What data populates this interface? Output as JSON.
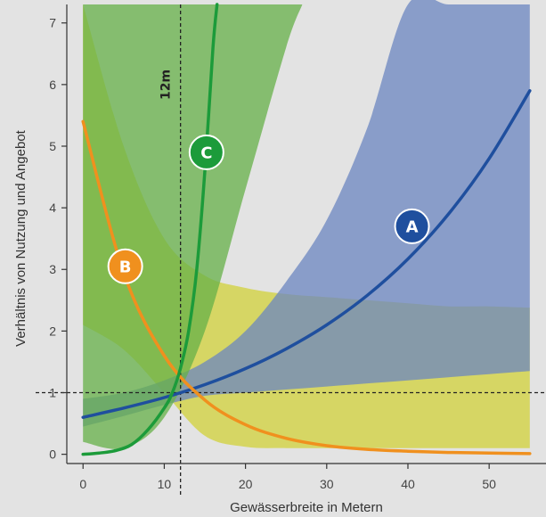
{
  "chart_data": {
    "type": "line",
    "xlabel": "Gewässerbreite in Metern",
    "ylabel": "Verhältnis von Nutzung und Angebot",
    "xlim": [
      -2,
      57
    ],
    "ylim": [
      -0.15,
      7.3
    ],
    "xticks": [
      0,
      10,
      20,
      30,
      40,
      50
    ],
    "yticks": [
      0,
      1,
      2,
      3,
      4,
      5,
      6,
      7
    ],
    "reference_lines": {
      "horizontal_y": 1,
      "vertical_x": 12,
      "vertical_label": "12m"
    },
    "grid": false,
    "series": [
      {
        "name": "A",
        "color": "#1f4f9e",
        "band_color": "#6b86c0",
        "x": [
          0,
          5,
          10,
          15,
          20,
          25,
          30,
          35,
          40,
          45,
          50,
          55
        ],
        "y": [
          0.6,
          0.75,
          0.92,
          1.13,
          1.39,
          1.71,
          2.1,
          2.58,
          3.17,
          3.9,
          4.8,
          5.9
        ],
        "band_x": [
          0,
          5,
          10,
          15,
          20,
          25,
          30,
          35,
          40,
          45,
          50,
          55
        ],
        "band_upper": [
          0.9,
          1.0,
          1.2,
          1.5,
          2.0,
          2.8,
          3.8,
          5.3,
          7.3,
          7.3,
          7.3,
          7.3
        ],
        "band_lower": [
          0.45,
          0.62,
          0.8,
          0.95,
          1.0,
          1.05,
          1.1,
          1.15,
          1.2,
          1.25,
          1.3,
          1.35
        ]
      },
      {
        "name": "B",
        "color": "#f0901e",
        "band_color": "#d3d34e",
        "x": [
          0,
          5,
          10,
          15,
          20,
          25,
          30,
          35,
          40,
          45,
          50,
          55
        ],
        "y": [
          5.4,
          2.95,
          1.6,
          0.88,
          0.48,
          0.26,
          0.14,
          0.08,
          0.05,
          0.03,
          0.02,
          0.01
        ],
        "band_x": [
          0,
          5,
          10,
          15,
          20,
          25,
          30,
          35,
          40,
          45,
          50,
          55
        ],
        "band_upper": [
          7.3,
          5.0,
          3.5,
          2.9,
          2.7,
          2.6,
          2.55,
          2.5,
          2.45,
          2.4,
          2.4,
          2.38
        ],
        "band_lower": [
          2.1,
          1.7,
          1.0,
          0.3,
          0.12,
          0.1,
          0.1,
          0.1,
          0.1,
          0.1,
          0.1,
          0.1
        ]
      },
      {
        "name": "C",
        "color": "#1c9b3a",
        "band_color": "#66b048",
        "x": [
          0,
          2,
          4,
          6,
          8,
          10,
          11,
          12,
          13,
          14,
          15,
          16,
          16.5
        ],
        "y": [
          0.0,
          0.02,
          0.06,
          0.16,
          0.4,
          0.75,
          1.0,
          1.4,
          2.0,
          3.0,
          4.6,
          6.6,
          7.3
        ],
        "band_x": [
          0,
          5,
          10,
          15,
          20,
          25,
          27
        ],
        "band_upper": [
          7.3,
          7.3,
          7.3,
          7.3,
          7.3,
          7.3,
          7.3
        ],
        "band_lower": [
          0.2,
          0.1,
          0.6,
          2.0,
          4.3,
          6.6,
          7.3
        ]
      }
    ]
  }
}
